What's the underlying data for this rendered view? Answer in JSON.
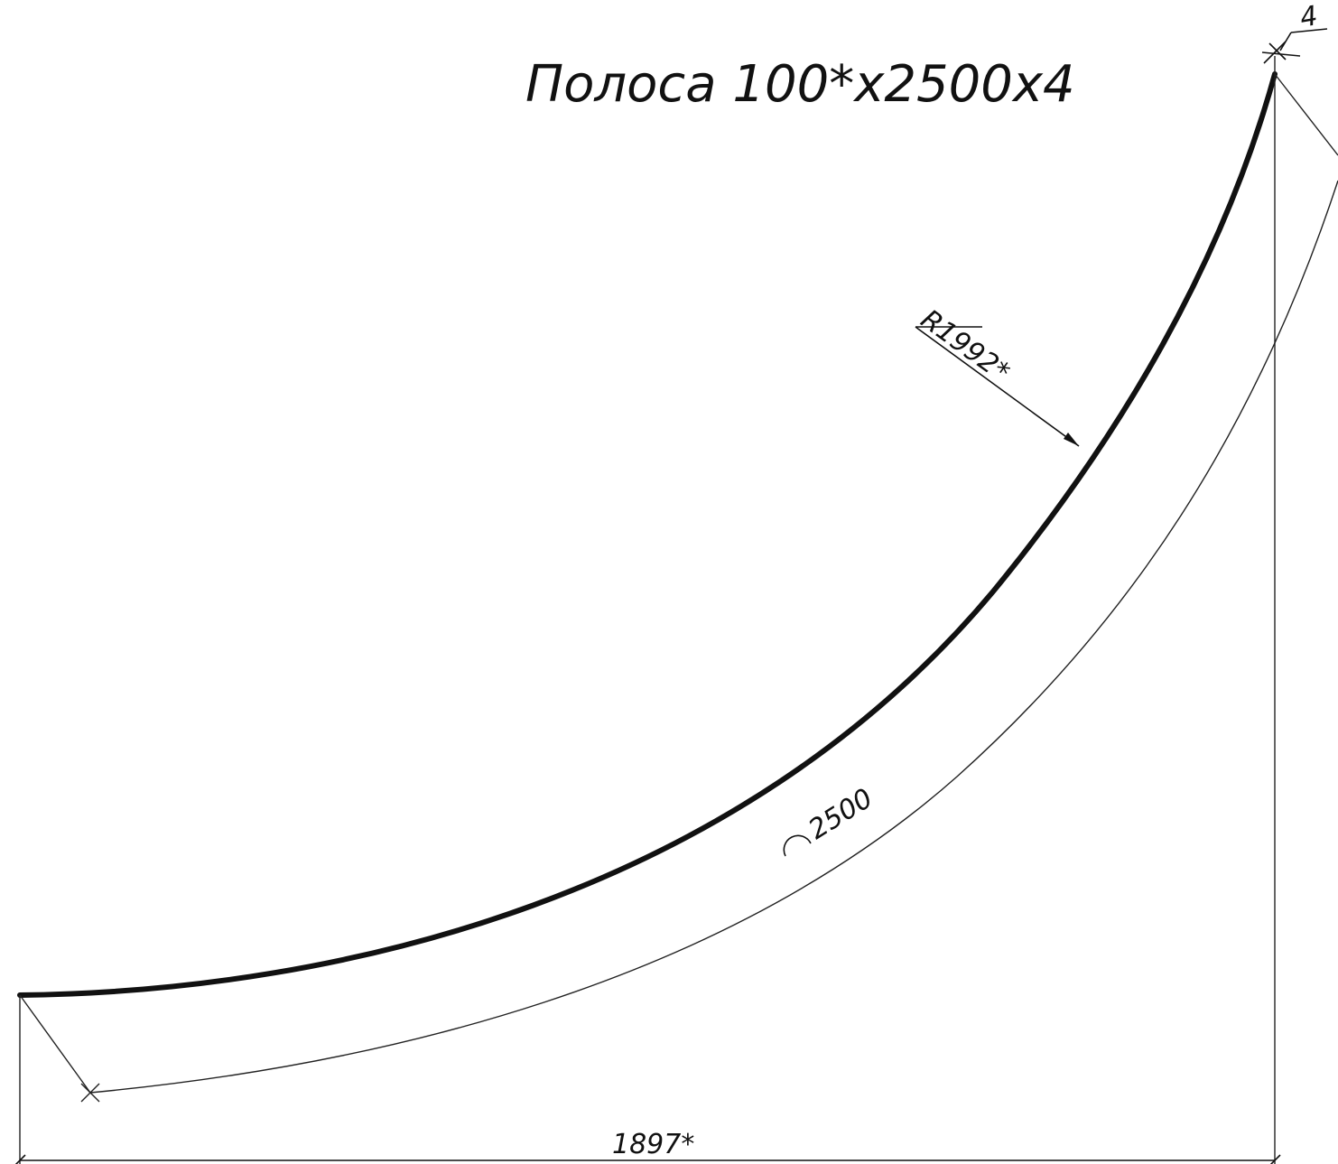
{
  "title": "Полоса 100*х2500х4",
  "dimensions": {
    "radius_label": "R1992*",
    "arc_length_label": "2500",
    "arc_length_symbol": "arc-length-symbol",
    "width_label": "1897*",
    "thickness_label": "4"
  },
  "colors": {
    "ink": "#111111",
    "paper": "#ffffff"
  }
}
